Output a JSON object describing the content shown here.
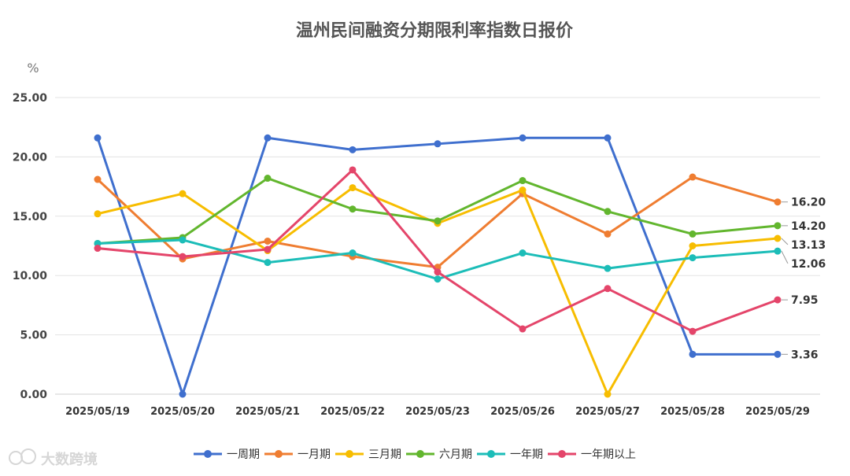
{
  "watermark": "大数跨境",
  "chart_data": {
    "type": "line",
    "title": "温州民间融资分期限利率指数日报价",
    "ylabel": "%",
    "xlabel": "",
    "ylim": [
      0,
      25
    ],
    "yticks": [
      "0.00",
      "5.00",
      "10.00",
      "15.00",
      "20.00",
      "25.00"
    ],
    "grid": "horizontal",
    "legend": "bottom",
    "categories": [
      "2025/05/19",
      "2025/05/20",
      "2025/05/21",
      "2025/05/22",
      "2025/05/23",
      "2025/05/26",
      "2025/05/27",
      "2025/05/28",
      "2025/05/29"
    ],
    "series": [
      {
        "name": "一周期",
        "color": "#3f6fce",
        "values": [
          21.6,
          0.0,
          21.6,
          20.6,
          21.1,
          21.6,
          21.6,
          3.36,
          3.36
        ],
        "end_label": "3.36"
      },
      {
        "name": "一月期",
        "color": "#ef7d31",
        "values": [
          18.1,
          11.4,
          12.9,
          11.6,
          10.7,
          16.9,
          13.5,
          18.3,
          16.2
        ],
        "end_label": "16.20"
      },
      {
        "name": "三月期",
        "color": "#f7bd00",
        "values": [
          15.2,
          16.9,
          12.1,
          17.4,
          14.4,
          17.2,
          0.0,
          12.5,
          13.13
        ],
        "end_label": "13.13"
      },
      {
        "name": "六月期",
        "color": "#62b62e",
        "values": [
          12.7,
          13.2,
          18.2,
          15.6,
          14.6,
          18.0,
          15.4,
          13.5,
          14.2
        ],
        "end_label": "14.20"
      },
      {
        "name": "一年期",
        "color": "#1cbdb8",
        "values": [
          12.7,
          13.0,
          11.1,
          11.9,
          9.7,
          11.9,
          10.6,
          11.5,
          12.06
        ],
        "end_label": "12.06"
      },
      {
        "name": "一年期以上",
        "color": "#e4456a",
        "values": [
          12.3,
          11.6,
          12.2,
          18.9,
          10.3,
          5.5,
          8.9,
          5.3,
          7.95
        ],
        "end_label": "7.95"
      }
    ]
  }
}
